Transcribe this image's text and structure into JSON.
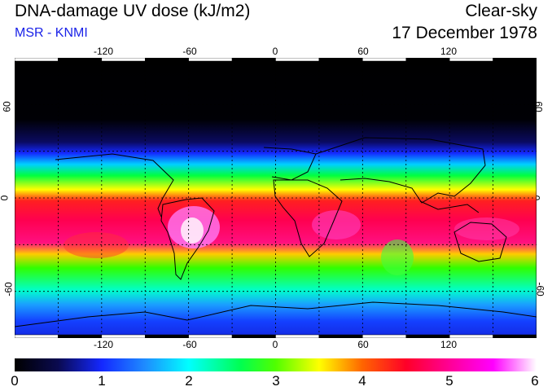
{
  "header": {
    "title": "DNA-damage UV dose (kJ/m2)",
    "subtitle": "MSR - KNMI",
    "mode": "Clear-sky",
    "date": "17 December 1978"
  },
  "map": {
    "longitude_ticks": [
      "-120",
      "-60",
      "0",
      "60",
      "120"
    ],
    "longitude_values": [
      -120,
      -60,
      0,
      60,
      120
    ],
    "latitude_ticks_left": [
      "60",
      "0",
      "-60"
    ],
    "latitude_ticks_right": [
      "60",
      "0",
      "-60"
    ],
    "latitude_values": [
      60,
      0,
      -60
    ],
    "lon_range": [
      -180,
      180
    ],
    "lat_range": [
      -90,
      90
    ],
    "grid_lons": [
      -150,
      -120,
      -90,
      -60,
      -30,
      0,
      30,
      60,
      90,
      120,
      150
    ],
    "grid_lats": [
      -60,
      -30,
      0,
      30,
      60
    ]
  },
  "colorbar": {
    "labels": [
      "0",
      "1",
      "2",
      "3",
      "4",
      "5",
      "6"
    ],
    "min": 0,
    "max": 6,
    "stops": [
      {
        "v": 0.0,
        "c": "#000000"
      },
      {
        "v": 0.5,
        "c": "#0a0a50"
      },
      {
        "v": 1.0,
        "c": "#1428ff"
      },
      {
        "v": 1.5,
        "c": "#1e8cff"
      },
      {
        "v": 2.0,
        "c": "#00ffff"
      },
      {
        "v": 2.6,
        "c": "#00ff50"
      },
      {
        "v": 3.0,
        "c": "#50ff00"
      },
      {
        "v": 3.5,
        "c": "#ffff00"
      },
      {
        "v": 4.0,
        "c": "#ff6400"
      },
      {
        "v": 4.5,
        "c": "#ff0028"
      },
      {
        "v": 5.0,
        "c": "#ff0096"
      },
      {
        "v": 5.5,
        "c": "#ff00ff"
      },
      {
        "v": 6.0,
        "c": "#ffffff"
      }
    ]
  }
}
